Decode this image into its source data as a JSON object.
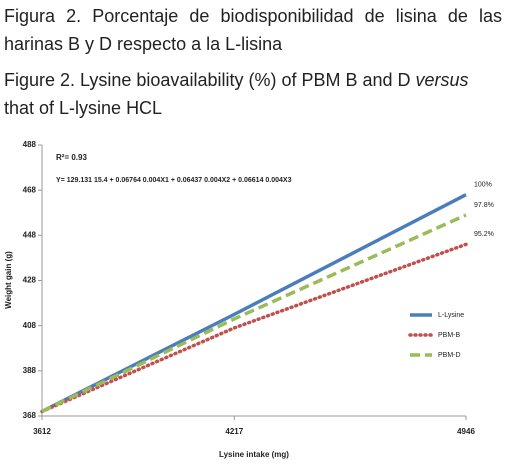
{
  "chart_data": {
    "type": "line",
    "title": "Figura 2. Porcentaje de biodisponibilidad de lisina de las harinas B y D respecto a la L-lisina",
    "subtitle_parts": [
      "Figure 2. Lysine bioavailability (%) of PBM B and D",
      "versus",
      "that of L-lysine HCL"
    ],
    "annotations": [
      "R²= 0.93",
      "Y= 129.131  15.4 + 0.06764  0.004X1 + 0.06437  0.004X2 + 0.06614  0.004X3"
    ],
    "x_label": "Lysine intake (mg)",
    "y_label": "Weight gain (g)",
    "x": [
      3612,
      4217,
      4946
    ],
    "xlim": [
      3612,
      4946
    ],
    "xticks": [
      3612,
      4217,
      4946
    ],
    "ylim": [
      368,
      488
    ],
    "yticks": [
      368,
      388,
      408,
      428,
      448,
      468,
      488
    ],
    "legend": "right",
    "series": [
      {
        "name": "L-Lysine",
        "color": "#4a7ebb",
        "dash": "solid",
        "values": [
          370,
          413,
          466
        ],
        "end_label": "100%"
      },
      {
        "name": "PBM-B",
        "color": "#c0504d",
        "dash": "dotted",
        "values": [
          370,
          407,
          444
        ],
        "end_label": "95.2%"
      },
      {
        "name": "PBM-D",
        "color": "#9bbb59",
        "dash": "dashed",
        "values": [
          370,
          411,
          457
        ],
        "end_label": "97.8%"
      }
    ]
  }
}
